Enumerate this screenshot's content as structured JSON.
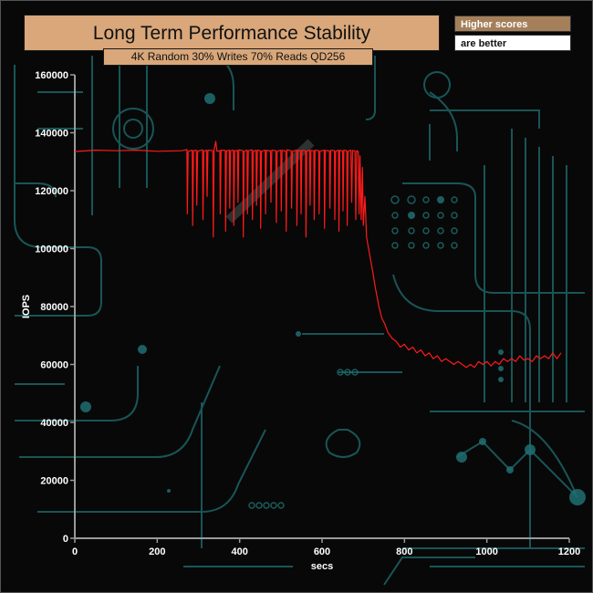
{
  "header": {
    "title": "Long Term Performance Stability",
    "subtitle": "4K Random 30% Writes 70% Reads QD256"
  },
  "legend": {
    "line1": "Higher scores",
    "line2": "are better"
  },
  "colors": {
    "title_bg": "#d9a77a",
    "legend_bg": "#a57f5a",
    "series": "#ff1a1a",
    "axis": "#9a9a9a",
    "decor": "#1f6f72"
  },
  "chart_data": {
    "type": "line",
    "title": "Long Term Performance Stability",
    "subtitle": "4K Random 30% Writes 70% Reads QD256",
    "xlabel": "secs",
    "ylabel": "IOPS",
    "xlim": [
      0,
      1200
    ],
    "ylim": [
      0,
      160000
    ],
    "x_ticks": [
      "0",
      "200",
      "400",
      "600",
      "800",
      "1000",
      "1200"
    ],
    "y_ticks": [
      "0",
      "20000",
      "40000",
      "60000",
      "80000",
      "100000",
      "120000",
      "140000",
      "160000"
    ],
    "series": [
      {
        "color": "#ff1a1a",
        "points": [
          [
            0,
            133500
          ],
          [
            50,
            134000
          ],
          [
            100,
            133800
          ],
          [
            150,
            134000
          ],
          [
            200,
            133600
          ],
          [
            260,
            133800
          ],
          [
            272,
            134200
          ],
          [
            273,
            112000
          ],
          [
            275,
            133500
          ],
          [
            285,
            134000
          ],
          [
            286,
            108000
          ],
          [
            288,
            133800
          ],
          [
            295,
            134000
          ],
          [
            296,
            115000
          ],
          [
            298,
            133600
          ],
          [
            310,
            134100
          ],
          [
            311,
            110000
          ],
          [
            313,
            133700
          ],
          [
            320,
            133900
          ],
          [
            321,
            118000
          ],
          [
            323,
            134000
          ],
          [
            335,
            133800
          ],
          [
            336,
            104000
          ],
          [
            338,
            134100
          ],
          [
            342,
            137000
          ],
          [
            345,
            133600
          ],
          [
            352,
            133800
          ],
          [
            353,
            112000
          ],
          [
            355,
            134000
          ],
          [
            365,
            133900
          ],
          [
            366,
            106000
          ],
          [
            368,
            133700
          ],
          [
            375,
            134000
          ],
          [
            376,
            114000
          ],
          [
            378,
            133800
          ],
          [
            385,
            134000
          ],
          [
            386,
            108000
          ],
          [
            388,
            133700
          ],
          [
            395,
            133900
          ],
          [
            396,
            116000
          ],
          [
            398,
            134100
          ],
          [
            408,
            133800
          ],
          [
            409,
            104000
          ],
          [
            411,
            133600
          ],
          [
            418,
            134000
          ],
          [
            419,
            112000
          ],
          [
            421,
            133800
          ],
          [
            430,
            134100
          ],
          [
            431,
            110000
          ],
          [
            433,
            133700
          ],
          [
            440,
            133900
          ],
          [
            441,
            115000
          ],
          [
            443,
            134000
          ],
          [
            450,
            133800
          ],
          [
            451,
            107000
          ],
          [
            453,
            133600
          ],
          [
            462,
            134000
          ],
          [
            463,
            112000
          ],
          [
            465,
            133900
          ],
          [
            475,
            133700
          ],
          [
            476,
            116000
          ],
          [
            478,
            134000
          ],
          [
            488,
            133800
          ],
          [
            489,
            109000
          ],
          [
            491,
            133600
          ],
          [
            500,
            134000
          ],
          [
            501,
            113000
          ],
          [
            503,
            133900
          ],
          [
            512,
            133700
          ],
          [
            513,
            106000
          ],
          [
            515,
            134100
          ],
          [
            525,
            133800
          ],
          [
            526,
            114000
          ],
          [
            528,
            133600
          ],
          [
            538,
            134000
          ],
          [
            539,
            108000
          ],
          [
            541,
            133900
          ],
          [
            548,
            133700
          ],
          [
            549,
            112000
          ],
          [
            551,
            134000
          ],
          [
            560,
            133800
          ],
          [
            561,
            104000
          ],
          [
            563,
            133600
          ],
          [
            570,
            134000
          ],
          [
            571,
            115000
          ],
          [
            573,
            133900
          ],
          [
            580,
            133700
          ],
          [
            581,
            110000
          ],
          [
            583,
            134000
          ],
          [
            592,
            133800
          ],
          [
            593,
            112000
          ],
          [
            595,
            133600
          ],
          [
            605,
            134000
          ],
          [
            606,
            107000
          ],
          [
            608,
            133900
          ],
          [
            618,
            133700
          ],
          [
            619,
            114000
          ],
          [
            621,
            134000
          ],
          [
            630,
            133800
          ],
          [
            631,
            110000
          ],
          [
            633,
            133600
          ],
          [
            640,
            134000
          ],
          [
            641,
            106000
          ],
          [
            643,
            133900
          ],
          [
            650,
            133700
          ],
          [
            651,
            113000
          ],
          [
            653,
            134000
          ],
          [
            660,
            133800
          ],
          [
            661,
            108000
          ],
          [
            663,
            133600
          ],
          [
            670,
            134000
          ],
          [
            672,
            116000
          ],
          [
            674,
            133900
          ],
          [
            680,
            133700
          ],
          [
            682,
            110000
          ],
          [
            684,
            133800
          ],
          [
            688,
            133500
          ],
          [
            690,
            112000
          ],
          [
            692,
            132000
          ],
          [
            695,
            110000
          ],
          [
            698,
            128000
          ],
          [
            700,
            108000
          ],
          [
            704,
            118000
          ],
          [
            708,
            104000
          ],
          [
            713,
            100000
          ],
          [
            718,
            96000
          ],
          [
            723,
            92000
          ],
          [
            730,
            86000
          ],
          [
            738,
            80000
          ],
          [
            745,
            76000
          ],
          [
            752,
            74000
          ],
          [
            760,
            71000
          ],
          [
            770,
            69000
          ],
          [
            780,
            68000
          ],
          [
            790,
            66000
          ],
          [
            800,
            67000
          ],
          [
            810,
            65000
          ],
          [
            820,
            66000
          ],
          [
            830,
            64000
          ],
          [
            840,
            65000
          ],
          [
            850,
            63000
          ],
          [
            860,
            64000
          ],
          [
            870,
            62000
          ],
          [
            880,
            63000
          ],
          [
            890,
            61000
          ],
          [
            900,
            62000
          ],
          [
            910,
            61000
          ],
          [
            920,
            60000
          ],
          [
            930,
            61000
          ],
          [
            940,
            60000
          ],
          [
            950,
            59000
          ],
          [
            960,
            60000
          ],
          [
            970,
            59000
          ],
          [
            980,
            61000
          ],
          [
            990,
            60000
          ],
          [
            1000,
            61000
          ],
          [
            1010,
            59500
          ],
          [
            1020,
            61000
          ],
          [
            1030,
            60000
          ],
          [
            1040,
            62000
          ],
          [
            1050,
            61000
          ],
          [
            1060,
            62000
          ],
          [
            1070,
            61000
          ],
          [
            1080,
            63000
          ],
          [
            1090,
            61500
          ],
          [
            1100,
            62000
          ],
          [
            1110,
            61000
          ],
          [
            1120,
            63000
          ],
          [
            1130,
            62000
          ],
          [
            1140,
            63000
          ],
          [
            1150,
            62000
          ],
          [
            1160,
            64000
          ],
          [
            1170,
            62000
          ],
          [
            1180,
            64000
          ]
        ]
      }
    ],
    "grid": false,
    "legend_position": "top-right"
  }
}
